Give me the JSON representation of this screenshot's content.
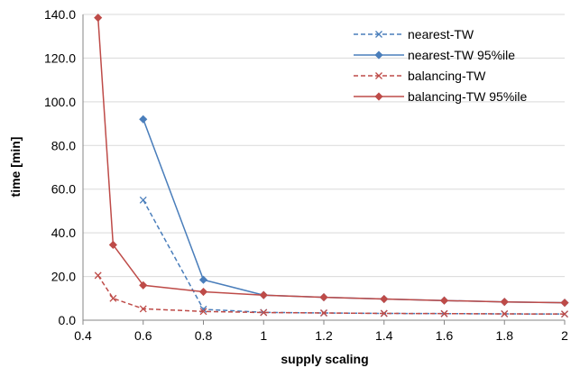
{
  "chart_data": {
    "type": "line",
    "title": "",
    "xlabel": "supply scaling",
    "ylabel": "time [min]",
    "xlim": [
      0.4,
      2
    ],
    "ylim": [
      0,
      140
    ],
    "x_ticks": [
      "0.4",
      "0.6",
      "0.8",
      "1",
      "1.2",
      "1.4",
      "1.6",
      "1.8",
      "2"
    ],
    "y_ticks": [
      "0.0",
      "20.0",
      "40.0",
      "60.0",
      "80.0",
      "100.0",
      "120.0",
      "140.0"
    ],
    "grid": "horizontal",
    "legend_position": "top-right",
    "series": [
      {
        "name": "nearest-TW",
        "color": "#4a7ebb",
        "line": "dashed",
        "marker": "x",
        "points": [
          [
            0.6,
            55.0
          ],
          [
            0.8,
            5.0
          ],
          [
            1.0,
            3.6
          ],
          [
            1.2,
            3.3
          ],
          [
            1.4,
            3.1
          ],
          [
            1.6,
            3.0
          ],
          [
            1.8,
            2.9
          ],
          [
            2.0,
            2.8
          ]
        ]
      },
      {
        "name": "nearest-TW 95%ile",
        "color": "#4a7ebb",
        "line": "solid",
        "marker": "diamond",
        "points": [
          [
            0.6,
            92.0
          ],
          [
            0.8,
            18.5
          ],
          [
            1.0,
            11.5
          ],
          [
            1.2,
            10.5
          ],
          [
            1.4,
            9.7
          ],
          [
            1.6,
            9.0
          ],
          [
            1.8,
            8.4
          ],
          [
            2.0,
            8.0
          ]
        ]
      },
      {
        "name": "balancing-TW",
        "color": "#be4b48",
        "line": "dashed",
        "marker": "x",
        "points": [
          [
            0.45,
            20.5
          ],
          [
            0.5,
            10.0
          ],
          [
            0.6,
            5.2
          ],
          [
            0.8,
            4.0
          ],
          [
            1.0,
            3.5
          ],
          [
            1.2,
            3.3
          ],
          [
            1.4,
            3.1
          ],
          [
            1.6,
            3.0
          ],
          [
            1.8,
            2.9
          ],
          [
            2.0,
            2.8
          ]
        ]
      },
      {
        "name": "balancing-TW 95%ile",
        "color": "#be4b48",
        "line": "solid",
        "marker": "diamond",
        "points": [
          [
            0.45,
            138.5
          ],
          [
            0.5,
            34.5
          ],
          [
            0.6,
            16.0
          ],
          [
            0.8,
            13.0
          ],
          [
            1.0,
            11.5
          ],
          [
            1.2,
            10.5
          ],
          [
            1.4,
            9.7
          ],
          [
            1.6,
            9.0
          ],
          [
            1.8,
            8.4
          ],
          [
            2.0,
            8.0
          ]
        ]
      }
    ]
  }
}
